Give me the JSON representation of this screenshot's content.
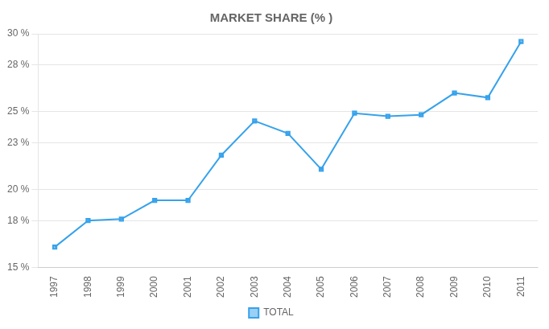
{
  "chart_data": {
    "type": "line",
    "title": "MARKET SHARE (% )",
    "x": [
      1997,
      1998,
      1999,
      2000,
      2001,
      2002,
      2003,
      2004,
      2005,
      2006,
      2007,
      2008,
      2009,
      2010,
      2011
    ],
    "series": [
      {
        "name": "TOTAL",
        "marker": "square",
        "values": [
          16.3,
          18.0,
          18.1,
          19.3,
          19.3,
          22.2,
          24.4,
          23.6,
          21.3,
          24.9,
          24.7,
          24.8,
          26.2,
          25.9,
          29.5
        ]
      }
    ],
    "xlim": [
      1996.5,
      2011.5
    ],
    "xticks": [
      1997,
      1998,
      1999,
      2000,
      2001,
      2002,
      2003,
      2004,
      2005,
      2006,
      2007,
      2008,
      2009,
      2010,
      2011
    ],
    "ylim": [
      15,
      30
    ],
    "yticks": [
      {
        "value": 15,
        "label": "15 %"
      },
      {
        "value": 18,
        "label": "18 %"
      },
      {
        "value": 20,
        "label": "20 %"
      },
      {
        "value": 23,
        "label": "23 %"
      },
      {
        "value": 25,
        "label": "25 %"
      },
      {
        "value": 28,
        "label": "28 %"
      },
      {
        "value": 30,
        "label": "30 %"
      }
    ],
    "grid": true,
    "legend": "bottom"
  }
}
